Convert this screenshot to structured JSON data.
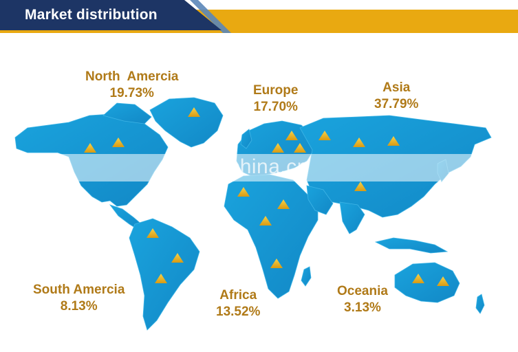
{
  "header": {
    "title": "Market distribution"
  },
  "regions": [
    {
      "name": "North  Amercia",
      "percent": "19.73%"
    },
    {
      "name": "Europe",
      "percent": "17.70%"
    },
    {
      "name": "Asia",
      "percent": "37.79%"
    },
    {
      "name": "South Amercia",
      "percent": "8.13%"
    },
    {
      "name": "Africa",
      "percent": "13.52%"
    },
    {
      "name": "Oceania",
      "percent": "3.13%"
    }
  ],
  "watermark": "en.china.cn",
  "colors": {
    "navy": "#1d3565",
    "gold": "#e9a911",
    "map": "#1a9fd8",
    "label": "#b07a18",
    "marker": "#f2c230"
  }
}
